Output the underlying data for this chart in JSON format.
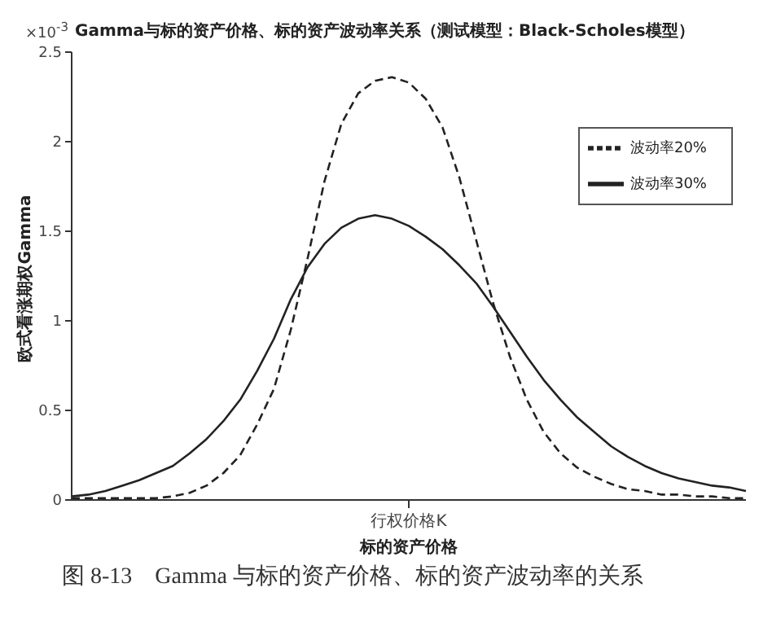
{
  "chart_data": {
    "type": "line",
    "title": "Gamma与标的资产价格、标的资产波动率关系（测试模型：Black-Scholes模型）",
    "xlabel": "标的资产价格",
    "ylabel": "欧式看涨期权Gamma",
    "annotations": [
      "×10$^{-3}$",
      "图 8-13　Gamma 与标的资产价格、标的资产波动率的关系"
    ],
    "categories": [
      null,
      null,
      null,
      null,
      null,
      null,
      null,
      null,
      null,
      null,
      null,
      null,
      null,
      null,
      null,
      null,
      null,
      null,
      null,
      null,
      "行权价格K",
      null,
      null,
      null,
      null,
      null,
      null,
      null,
      null,
      null,
      null,
      null,
      null,
      null,
      null,
      null,
      null,
      null,
      null,
      null,
      null
    ],
    "series": [
      {
        "name": "波动率20%",
        "color": "#222222",
        "line_style": "dashed",
        "values": [
          0.01,
          0.01,
          0.01,
          0.01,
          0.01,
          0.01,
          0.02,
          0.04,
          0.08,
          0.15,
          0.25,
          0.42,
          0.62,
          0.95,
          1.35,
          1.78,
          2.1,
          2.27,
          2.34,
          2.36,
          2.33,
          2.24,
          2.08,
          1.8,
          1.45,
          1.1,
          0.8,
          0.56,
          0.38,
          0.26,
          0.18,
          0.13,
          0.09,
          0.06,
          0.05,
          0.03,
          0.03,
          0.02,
          0.02,
          0.01,
          0.01
        ]
      },
      {
        "name": "波动率30%",
        "color": "#222222",
        "line_style": "solid",
        "values": [
          0.02,
          0.03,
          0.05,
          0.08,
          0.11,
          0.15,
          0.19,
          0.26,
          0.34,
          0.44,
          0.56,
          0.72,
          0.9,
          1.12,
          1.3,
          1.43,
          1.52,
          1.57,
          1.59,
          1.57,
          1.53,
          1.47,
          1.4,
          1.31,
          1.21,
          1.08,
          0.94,
          0.8,
          0.67,
          0.56,
          0.46,
          0.38,
          0.3,
          0.24,
          0.19,
          0.15,
          0.12,
          0.1,
          0.08,
          0.07,
          0.05
        ]
      }
    ],
    "ylim": [
      0,
      2.5
    ],
    "yticks": [
      0,
      0.5,
      1,
      1.5,
      2,
      2.5
    ],
    "grid": false,
    "legend": "top right",
    "marker": "none"
  }
}
